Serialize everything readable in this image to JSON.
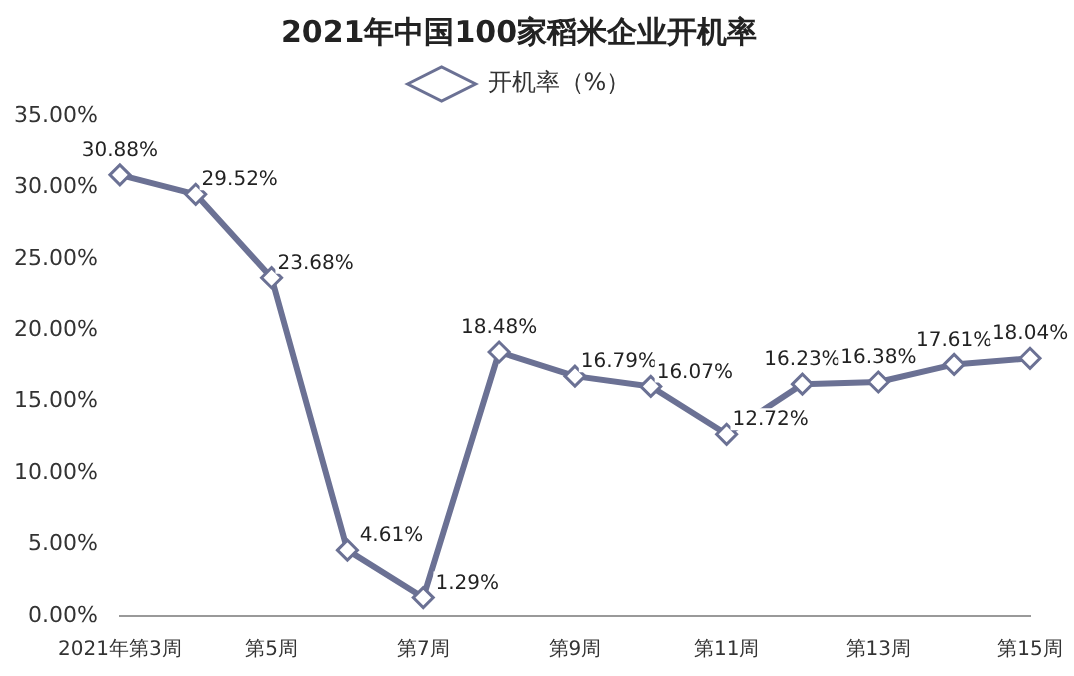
{
  "chart_data": {
    "type": "line",
    "title": "2021年中国100家稻米企业开机率",
    "categories": [
      "2021年第3周",
      null,
      "第5周",
      null,
      "第7周",
      null,
      "第9周",
      null,
      "第11周",
      null,
      "第13周",
      null,
      "第15周"
    ],
    "series": [
      {
        "name": "开机率（%）",
        "color": "#6b7194",
        "values": [
          30.88,
          29.52,
          23.68,
          4.61,
          1.29,
          18.48,
          16.79,
          16.07,
          12.72,
          16.23,
          16.38,
          17.61,
          18.04
        ],
        "value_labels": [
          "30.88%",
          "29.52%",
          "23.68%",
          "4.61%",
          "1.29%",
          "18.48%",
          "16.79%",
          "16.07%",
          "12.72%",
          "16.23%",
          "16.38%",
          "17.61%",
          "18.04%"
        ]
      }
    ],
    "ylim": [
      0,
      35
    ],
    "yticks": [
      {
        "value": 0,
        "label": "0.00%"
      },
      {
        "value": 5,
        "label": "5.00%"
      },
      {
        "value": 10,
        "label": "10.00%"
      },
      {
        "value": 15,
        "label": "15.00%"
      },
      {
        "value": 20,
        "label": "20.00%"
      },
      {
        "value": 25,
        "label": "25.00%"
      },
      {
        "value": 30,
        "label": "30.00%"
      },
      {
        "value": 35,
        "label": "35.00%"
      }
    ],
    "grid": false,
    "legend": "top",
    "marker": "diamond",
    "line_style": "solid"
  }
}
